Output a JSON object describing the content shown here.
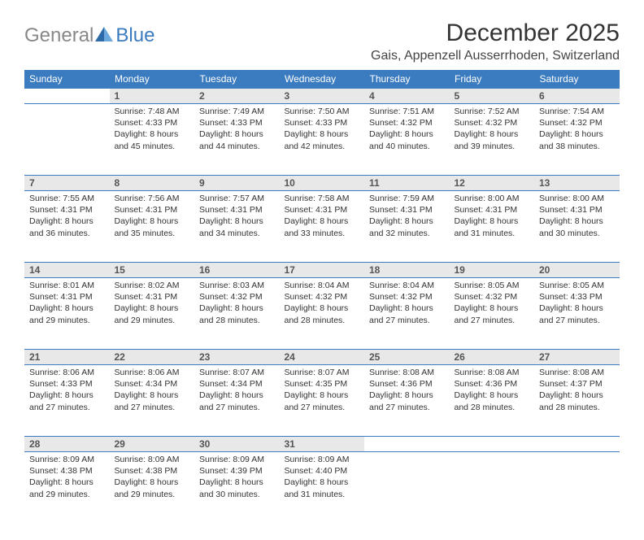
{
  "logo": {
    "textGeneral": "General",
    "textBlue": "Blue"
  },
  "title": "December 2025",
  "location": "Gais, Appenzell Ausserrhoden, Switzerland",
  "colors": {
    "headerBg": "#3b7bbf",
    "dayNumBg": "#e8e8e8",
    "border": "#3b7bbf"
  },
  "dayHeaders": [
    "Sunday",
    "Monday",
    "Tuesday",
    "Wednesday",
    "Thursday",
    "Friday",
    "Saturday"
  ],
  "weeks": [
    [
      null,
      {
        "n": "1",
        "sr": "7:48 AM",
        "ss": "4:33 PM",
        "dl": "8 hours and 45 minutes."
      },
      {
        "n": "2",
        "sr": "7:49 AM",
        "ss": "4:33 PM",
        "dl": "8 hours and 44 minutes."
      },
      {
        "n": "3",
        "sr": "7:50 AM",
        "ss": "4:33 PM",
        "dl": "8 hours and 42 minutes."
      },
      {
        "n": "4",
        "sr": "7:51 AM",
        "ss": "4:32 PM",
        "dl": "8 hours and 40 minutes."
      },
      {
        "n": "5",
        "sr": "7:52 AM",
        "ss": "4:32 PM",
        "dl": "8 hours and 39 minutes."
      },
      {
        "n": "6",
        "sr": "7:54 AM",
        "ss": "4:32 PM",
        "dl": "8 hours and 38 minutes."
      }
    ],
    [
      {
        "n": "7",
        "sr": "7:55 AM",
        "ss": "4:31 PM",
        "dl": "8 hours and 36 minutes."
      },
      {
        "n": "8",
        "sr": "7:56 AM",
        "ss": "4:31 PM",
        "dl": "8 hours and 35 minutes."
      },
      {
        "n": "9",
        "sr": "7:57 AM",
        "ss": "4:31 PM",
        "dl": "8 hours and 34 minutes."
      },
      {
        "n": "10",
        "sr": "7:58 AM",
        "ss": "4:31 PM",
        "dl": "8 hours and 33 minutes."
      },
      {
        "n": "11",
        "sr": "7:59 AM",
        "ss": "4:31 PM",
        "dl": "8 hours and 32 minutes."
      },
      {
        "n": "12",
        "sr": "8:00 AM",
        "ss": "4:31 PM",
        "dl": "8 hours and 31 minutes."
      },
      {
        "n": "13",
        "sr": "8:00 AM",
        "ss": "4:31 PM",
        "dl": "8 hours and 30 minutes."
      }
    ],
    [
      {
        "n": "14",
        "sr": "8:01 AM",
        "ss": "4:31 PM",
        "dl": "8 hours and 29 minutes."
      },
      {
        "n": "15",
        "sr": "8:02 AM",
        "ss": "4:31 PM",
        "dl": "8 hours and 29 minutes."
      },
      {
        "n": "16",
        "sr": "8:03 AM",
        "ss": "4:32 PM",
        "dl": "8 hours and 28 minutes."
      },
      {
        "n": "17",
        "sr": "8:04 AM",
        "ss": "4:32 PM",
        "dl": "8 hours and 28 minutes."
      },
      {
        "n": "18",
        "sr": "8:04 AM",
        "ss": "4:32 PM",
        "dl": "8 hours and 27 minutes."
      },
      {
        "n": "19",
        "sr": "8:05 AM",
        "ss": "4:32 PM",
        "dl": "8 hours and 27 minutes."
      },
      {
        "n": "20",
        "sr": "8:05 AM",
        "ss": "4:33 PM",
        "dl": "8 hours and 27 minutes."
      }
    ],
    [
      {
        "n": "21",
        "sr": "8:06 AM",
        "ss": "4:33 PM",
        "dl": "8 hours and 27 minutes."
      },
      {
        "n": "22",
        "sr": "8:06 AM",
        "ss": "4:34 PM",
        "dl": "8 hours and 27 minutes."
      },
      {
        "n": "23",
        "sr": "8:07 AM",
        "ss": "4:34 PM",
        "dl": "8 hours and 27 minutes."
      },
      {
        "n": "24",
        "sr": "8:07 AM",
        "ss": "4:35 PM",
        "dl": "8 hours and 27 minutes."
      },
      {
        "n": "25",
        "sr": "8:08 AM",
        "ss": "4:36 PM",
        "dl": "8 hours and 27 minutes."
      },
      {
        "n": "26",
        "sr": "8:08 AM",
        "ss": "4:36 PM",
        "dl": "8 hours and 28 minutes."
      },
      {
        "n": "27",
        "sr": "8:08 AM",
        "ss": "4:37 PM",
        "dl": "8 hours and 28 minutes."
      }
    ],
    [
      {
        "n": "28",
        "sr": "8:09 AM",
        "ss": "4:38 PM",
        "dl": "8 hours and 29 minutes."
      },
      {
        "n": "29",
        "sr": "8:09 AM",
        "ss": "4:38 PM",
        "dl": "8 hours and 29 minutes."
      },
      {
        "n": "30",
        "sr": "8:09 AM",
        "ss": "4:39 PM",
        "dl": "8 hours and 30 minutes."
      },
      {
        "n": "31",
        "sr": "8:09 AM",
        "ss": "4:40 PM",
        "dl": "8 hours and 31 minutes."
      },
      null,
      null,
      null
    ]
  ],
  "labels": {
    "sunrise": "Sunrise: ",
    "sunset": "Sunset: ",
    "daylight": "Daylight: "
  }
}
